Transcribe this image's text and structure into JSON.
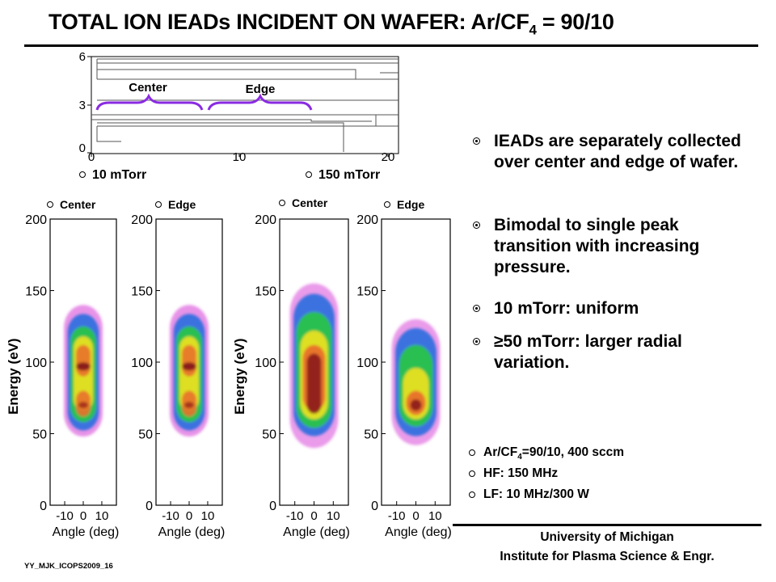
{
  "title": {
    "main": "TOTAL ION IEADs INCIDENT  ON WAFER: Ar/CF",
    "sub": "4",
    "tail": " = 90/10"
  },
  "geometry_plot": {
    "y_ticks": [
      "6",
      "3",
      "0"
    ],
    "x_ticks": [
      "0",
      "10",
      "20"
    ],
    "center_label": "Center",
    "edge_label": "Edge"
  },
  "cases": [
    {
      "pressure": "10 mTorr",
      "panels": [
        "Center",
        "Edge"
      ]
    },
    {
      "pressure": "150 mTorr",
      "panels": [
        "Center",
        "Edge"
      ]
    }
  ],
  "axes": {
    "ylabel": "Energy (eV)",
    "xlabel": "Angle (deg)",
    "y_ticks": [
      "200",
      "150",
      "100",
      "50",
      "0"
    ],
    "x_ticks": [
      "-10",
      "0",
      "10"
    ]
  },
  "bullets": [
    "IEADs are separately collected over center and edge of wafer.",
    "Bimodal to single peak transition with increasing pressure.",
    "10 mTorr: uniform",
    "≥50 mTorr: larger radial variation."
  ],
  "conditions": {
    "gas_main": "Ar/CF",
    "gas_sub": "4",
    "gas_tail": "=90/10, 400 sccm",
    "hf": "HF: 150 MHz",
    "lf": "LF: 10 MHz/300 W"
  },
  "footer": {
    "line1": "University of Michigan",
    "line2": "Institute for Plasma Science & Engr."
  },
  "slide_id": "YY_MJK_ICOPS2009_16",
  "colors": {
    "accent_purple": "#8a2be2",
    "core": "#8b1a1a",
    "hot": "#e8702a",
    "yellow": "#e8e020",
    "green": "#2cc44a",
    "blue": "#2a6fe0",
    "magenta": "#d63ad6"
  }
}
